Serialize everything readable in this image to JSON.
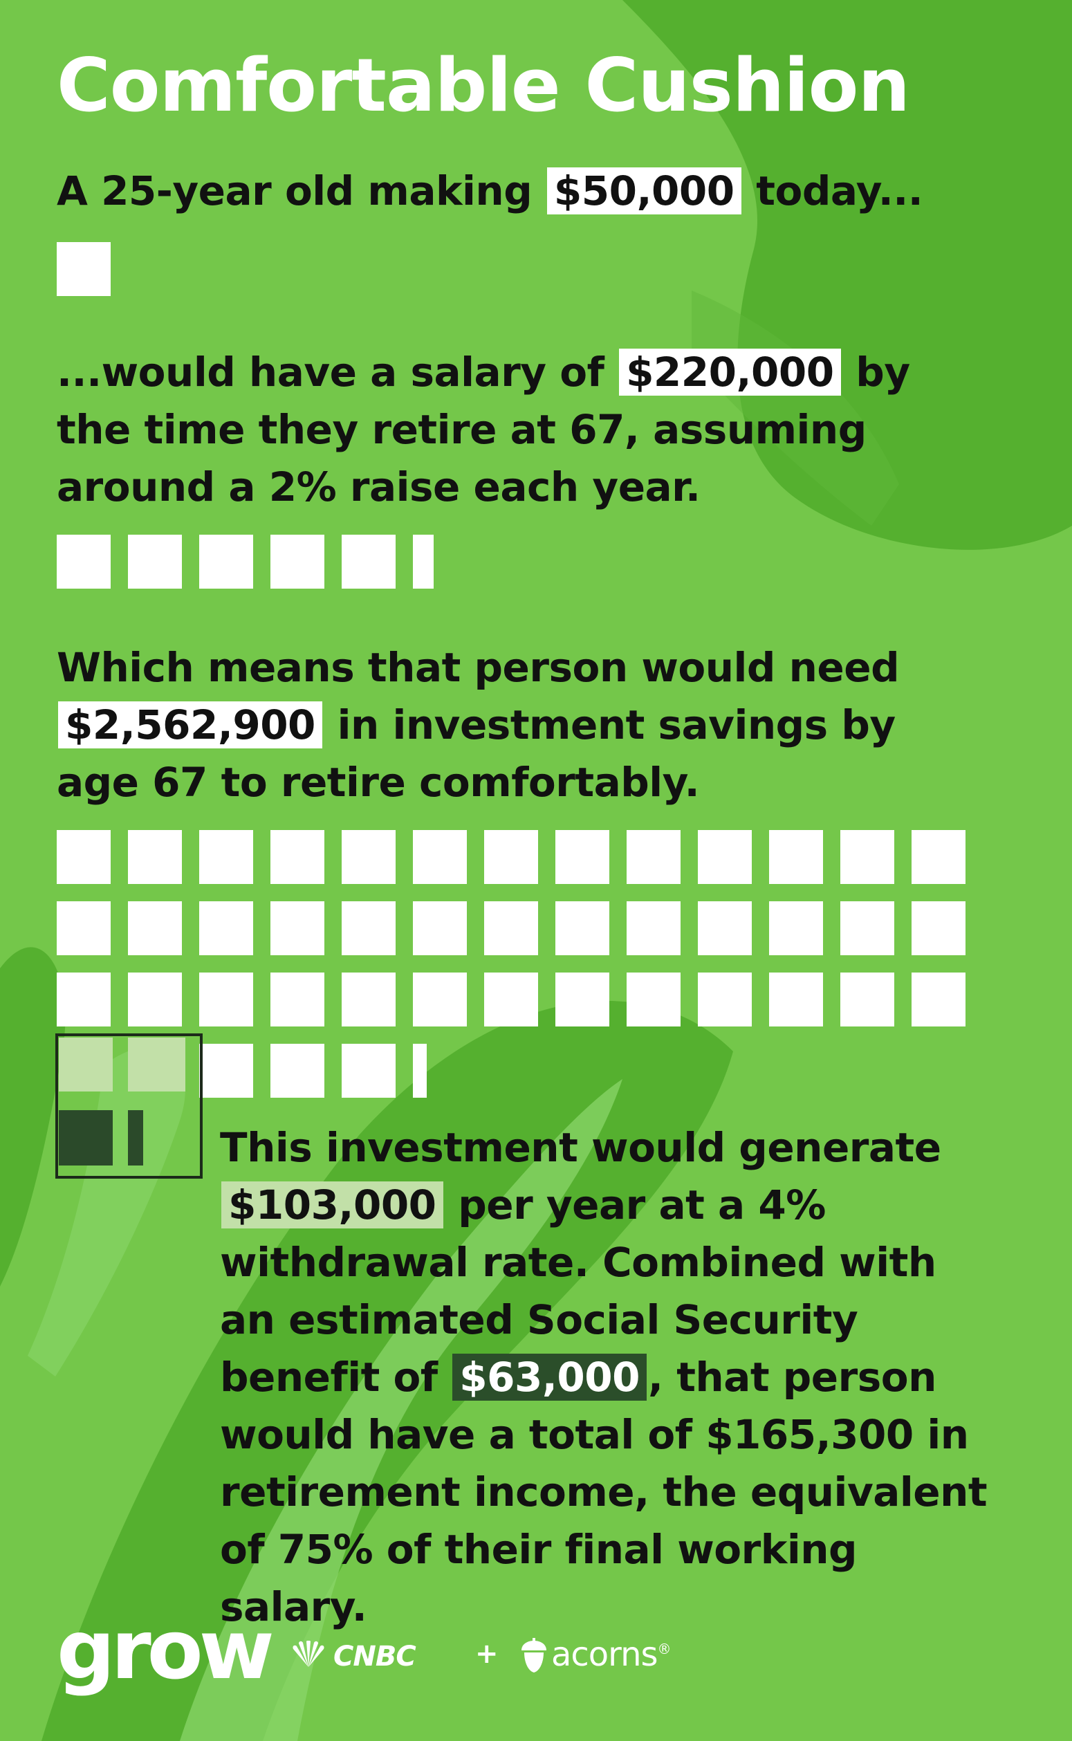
{
  "title": "Comfortable Cushion",
  "section1": {
    "before": "A 25-year old making ",
    "amount": "$50,000",
    "after": " today..."
  },
  "section2": {
    "before": "...would have a salary of ",
    "amount": "$220,000",
    "after": " by the time they retire at 67, assuming around a 2% raise each year."
  },
  "section3": {
    "before": "Which means that person would need ",
    "amount": "$2,562,900",
    "after": " in investment savings by age 67 to retire comfortably."
  },
  "section4": {
    "part1": "This investment would generate ",
    "amount1": "$103,000",
    "part2": " per year at a 4% withdrawal rate. Combined with an estimated Social Security benefit of ",
    "amount2": "$63,000",
    "part3": ", that person would have a total of $165,300 in retirement income, the equivalent of 75% of their final working salary."
  },
  "footer": {
    "brand": "grow",
    "partner1": "CNBC",
    "plus": "+",
    "partner2": "acorns",
    "partner2_mark": "®"
  },
  "colors": {
    "background": "#74c74a",
    "blob_dark": "#55b02f",
    "blob_light": "#8ad56a",
    "highlight_white": "#ffffff",
    "highlight_light": "#c2e0a8",
    "highlight_dark": "#2b4e2a"
  },
  "icons": [
    "peacock-icon",
    "acorn-icon"
  ]
}
